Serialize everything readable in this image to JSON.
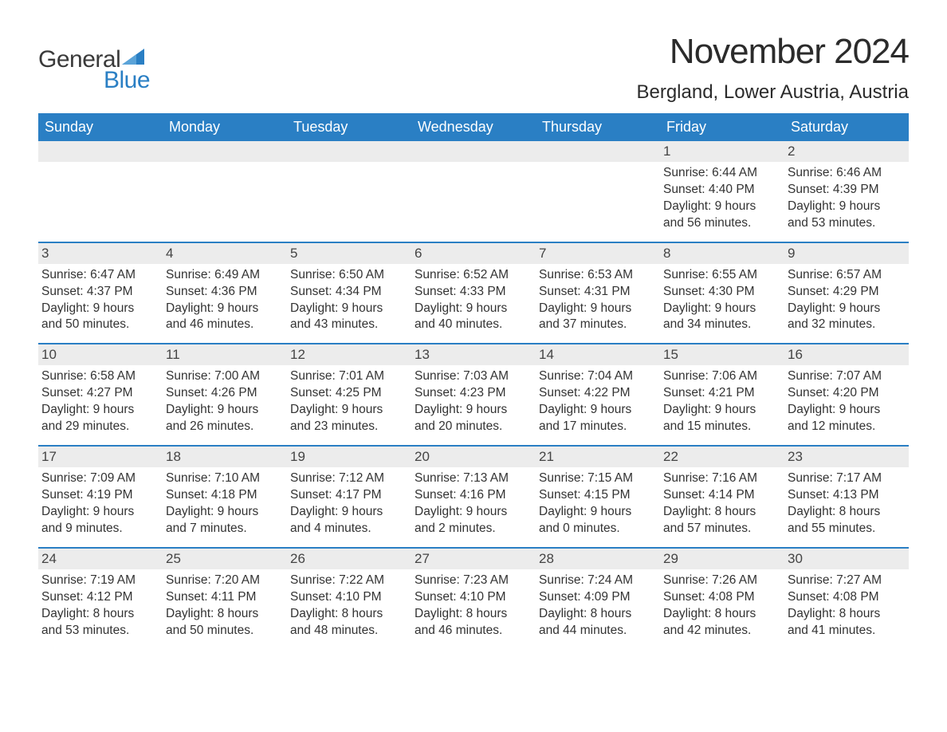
{
  "logo": {
    "text_general": "General",
    "text_blue": "Blue",
    "sail_color": "#2a7fc4",
    "general_color": "#3a3a3a",
    "blue_color": "#2a7fc4"
  },
  "title": "November 2024",
  "location": "Bergland, Lower Austria, Austria",
  "colors": {
    "header_bg": "#2a7fc4",
    "header_text": "#ffffff",
    "daynum_bg": "#ececec",
    "text": "#333333",
    "week_border": "#2a7fc4"
  },
  "day_headers": [
    "Sunday",
    "Monday",
    "Tuesday",
    "Wednesday",
    "Thursday",
    "Friday",
    "Saturday"
  ],
  "weeks": [
    [
      {
        "empty": true
      },
      {
        "empty": true
      },
      {
        "empty": true
      },
      {
        "empty": true
      },
      {
        "empty": true
      },
      {
        "day": "1",
        "sunrise": "Sunrise: 6:44 AM",
        "sunset": "Sunset: 4:40 PM",
        "daylight1": "Daylight: 9 hours",
        "daylight2": "and 56 minutes."
      },
      {
        "day": "2",
        "sunrise": "Sunrise: 6:46 AM",
        "sunset": "Sunset: 4:39 PM",
        "daylight1": "Daylight: 9 hours",
        "daylight2": "and 53 minutes."
      }
    ],
    [
      {
        "day": "3",
        "sunrise": "Sunrise: 6:47 AM",
        "sunset": "Sunset: 4:37 PM",
        "daylight1": "Daylight: 9 hours",
        "daylight2": "and 50 minutes."
      },
      {
        "day": "4",
        "sunrise": "Sunrise: 6:49 AM",
        "sunset": "Sunset: 4:36 PM",
        "daylight1": "Daylight: 9 hours",
        "daylight2": "and 46 minutes."
      },
      {
        "day": "5",
        "sunrise": "Sunrise: 6:50 AM",
        "sunset": "Sunset: 4:34 PM",
        "daylight1": "Daylight: 9 hours",
        "daylight2": "and 43 minutes."
      },
      {
        "day": "6",
        "sunrise": "Sunrise: 6:52 AM",
        "sunset": "Sunset: 4:33 PM",
        "daylight1": "Daylight: 9 hours",
        "daylight2": "and 40 minutes."
      },
      {
        "day": "7",
        "sunrise": "Sunrise: 6:53 AM",
        "sunset": "Sunset: 4:31 PM",
        "daylight1": "Daylight: 9 hours",
        "daylight2": "and 37 minutes."
      },
      {
        "day": "8",
        "sunrise": "Sunrise: 6:55 AM",
        "sunset": "Sunset: 4:30 PM",
        "daylight1": "Daylight: 9 hours",
        "daylight2": "and 34 minutes."
      },
      {
        "day": "9",
        "sunrise": "Sunrise: 6:57 AM",
        "sunset": "Sunset: 4:29 PM",
        "daylight1": "Daylight: 9 hours",
        "daylight2": "and 32 minutes."
      }
    ],
    [
      {
        "day": "10",
        "sunrise": "Sunrise: 6:58 AM",
        "sunset": "Sunset: 4:27 PM",
        "daylight1": "Daylight: 9 hours",
        "daylight2": "and 29 minutes."
      },
      {
        "day": "11",
        "sunrise": "Sunrise: 7:00 AM",
        "sunset": "Sunset: 4:26 PM",
        "daylight1": "Daylight: 9 hours",
        "daylight2": "and 26 minutes."
      },
      {
        "day": "12",
        "sunrise": "Sunrise: 7:01 AM",
        "sunset": "Sunset: 4:25 PM",
        "daylight1": "Daylight: 9 hours",
        "daylight2": "and 23 minutes."
      },
      {
        "day": "13",
        "sunrise": "Sunrise: 7:03 AM",
        "sunset": "Sunset: 4:23 PM",
        "daylight1": "Daylight: 9 hours",
        "daylight2": "and 20 minutes."
      },
      {
        "day": "14",
        "sunrise": "Sunrise: 7:04 AM",
        "sunset": "Sunset: 4:22 PM",
        "daylight1": "Daylight: 9 hours",
        "daylight2": "and 17 minutes."
      },
      {
        "day": "15",
        "sunrise": "Sunrise: 7:06 AM",
        "sunset": "Sunset: 4:21 PM",
        "daylight1": "Daylight: 9 hours",
        "daylight2": "and 15 minutes."
      },
      {
        "day": "16",
        "sunrise": "Sunrise: 7:07 AM",
        "sunset": "Sunset: 4:20 PM",
        "daylight1": "Daylight: 9 hours",
        "daylight2": "and 12 minutes."
      }
    ],
    [
      {
        "day": "17",
        "sunrise": "Sunrise: 7:09 AM",
        "sunset": "Sunset: 4:19 PM",
        "daylight1": "Daylight: 9 hours",
        "daylight2": "and 9 minutes."
      },
      {
        "day": "18",
        "sunrise": "Sunrise: 7:10 AM",
        "sunset": "Sunset: 4:18 PM",
        "daylight1": "Daylight: 9 hours",
        "daylight2": "and 7 minutes."
      },
      {
        "day": "19",
        "sunrise": "Sunrise: 7:12 AM",
        "sunset": "Sunset: 4:17 PM",
        "daylight1": "Daylight: 9 hours",
        "daylight2": "and 4 minutes."
      },
      {
        "day": "20",
        "sunrise": "Sunrise: 7:13 AM",
        "sunset": "Sunset: 4:16 PM",
        "daylight1": "Daylight: 9 hours",
        "daylight2": "and 2 minutes."
      },
      {
        "day": "21",
        "sunrise": "Sunrise: 7:15 AM",
        "sunset": "Sunset: 4:15 PM",
        "daylight1": "Daylight: 9 hours",
        "daylight2": "and 0 minutes."
      },
      {
        "day": "22",
        "sunrise": "Sunrise: 7:16 AM",
        "sunset": "Sunset: 4:14 PM",
        "daylight1": "Daylight: 8 hours",
        "daylight2": "and 57 minutes."
      },
      {
        "day": "23",
        "sunrise": "Sunrise: 7:17 AM",
        "sunset": "Sunset: 4:13 PM",
        "daylight1": "Daylight: 8 hours",
        "daylight2": "and 55 minutes."
      }
    ],
    [
      {
        "day": "24",
        "sunrise": "Sunrise: 7:19 AM",
        "sunset": "Sunset: 4:12 PM",
        "daylight1": "Daylight: 8 hours",
        "daylight2": "and 53 minutes."
      },
      {
        "day": "25",
        "sunrise": "Sunrise: 7:20 AM",
        "sunset": "Sunset: 4:11 PM",
        "daylight1": "Daylight: 8 hours",
        "daylight2": "and 50 minutes."
      },
      {
        "day": "26",
        "sunrise": "Sunrise: 7:22 AM",
        "sunset": "Sunset: 4:10 PM",
        "daylight1": "Daylight: 8 hours",
        "daylight2": "and 48 minutes."
      },
      {
        "day": "27",
        "sunrise": "Sunrise: 7:23 AM",
        "sunset": "Sunset: 4:10 PM",
        "daylight1": "Daylight: 8 hours",
        "daylight2": "and 46 minutes."
      },
      {
        "day": "28",
        "sunrise": "Sunrise: 7:24 AM",
        "sunset": "Sunset: 4:09 PM",
        "daylight1": "Daylight: 8 hours",
        "daylight2": "and 44 minutes."
      },
      {
        "day": "29",
        "sunrise": "Sunrise: 7:26 AM",
        "sunset": "Sunset: 4:08 PM",
        "daylight1": "Daylight: 8 hours",
        "daylight2": "and 42 minutes."
      },
      {
        "day": "30",
        "sunrise": "Sunrise: 7:27 AM",
        "sunset": "Sunset: 4:08 PM",
        "daylight1": "Daylight: 8 hours",
        "daylight2": "and 41 minutes."
      }
    ]
  ]
}
